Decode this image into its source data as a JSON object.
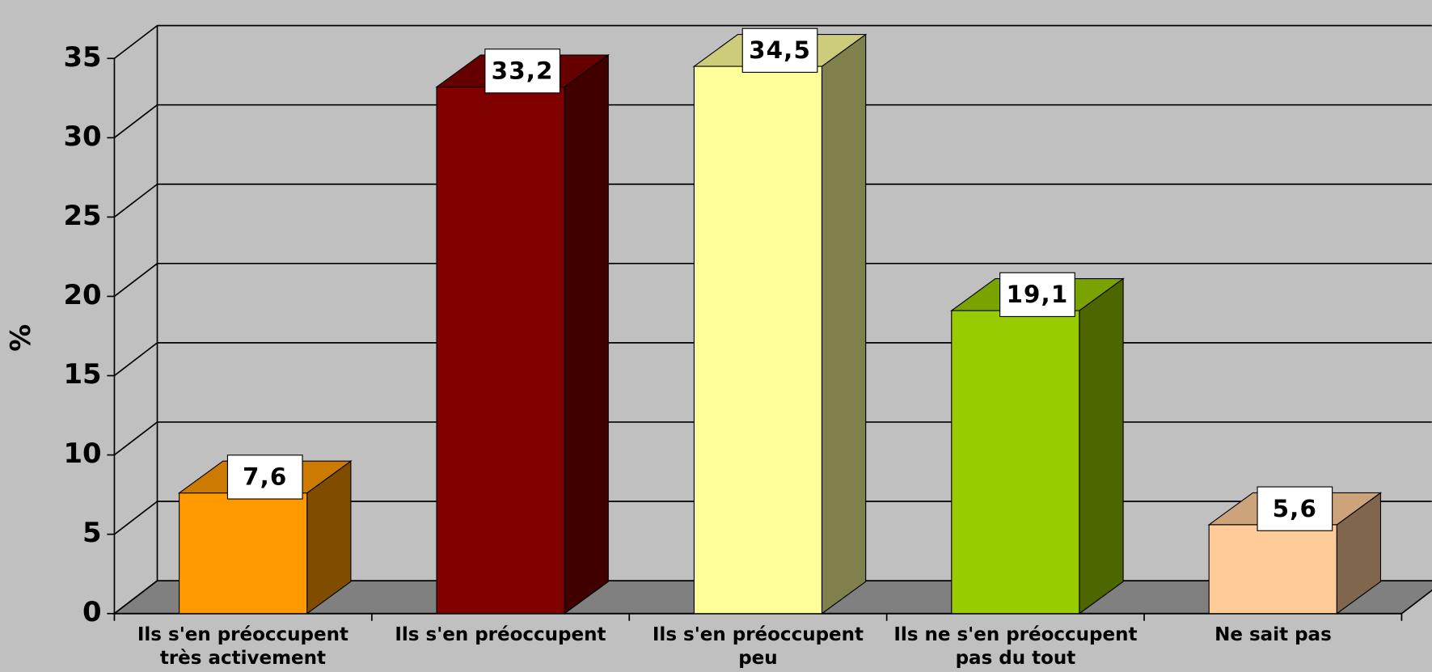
{
  "chart_data": {
    "type": "bar3d",
    "y_label": "%",
    "categories": [
      "Ils s'en préoccupent\ntrès activement",
      "Ils s'en préoccupent",
      "Ils s'en préoccupent\npeu",
      "Ils ne s'en préoccupent\npas du tout",
      "Ne sait pas"
    ],
    "values": [
      7.6,
      33.2,
      34.5,
      19.1,
      5.6
    ],
    "value_labels": [
      "7,6",
      "33,2",
      "34,5",
      "19,1",
      "5,6"
    ],
    "colors": [
      "#ff9900",
      "#800000",
      "#ffff99",
      "#99cc00",
      "#ffcc99"
    ],
    "ylim": [
      0,
      35
    ],
    "yticks": [
      0,
      5,
      10,
      15,
      20,
      25,
      30,
      35
    ],
    "grid": true
  }
}
